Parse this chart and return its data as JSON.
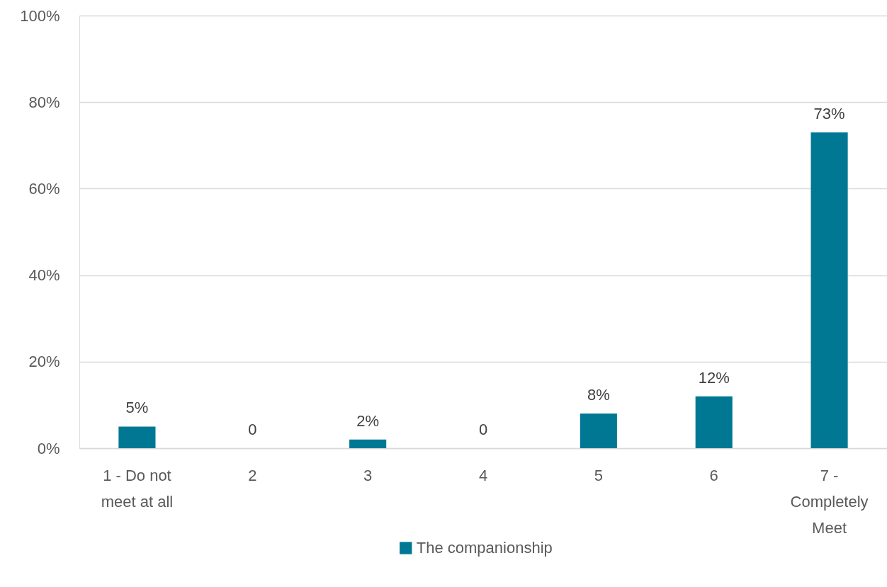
{
  "chart_data": {
    "type": "bar",
    "categories": [
      "1 - Do not meet at all",
      "2",
      "3",
      "4",
      "5",
      "6",
      "7 - Completely Meet"
    ],
    "series": [
      {
        "name": "The companionship",
        "color": "#007894",
        "values": [
          5,
          0,
          2,
          0,
          8,
          12,
          73
        ],
        "value_labels": [
          "5%",
          "0",
          "2%",
          "0",
          "8%",
          "12%",
          "73%"
        ]
      }
    ],
    "ylim": [
      0,
      100
    ],
    "yticks": [
      {
        "value": 0,
        "label": "0%"
      },
      {
        "value": 20,
        "label": "20%"
      },
      {
        "value": 40,
        "label": "40%"
      },
      {
        "value": 60,
        "label": "60%"
      },
      {
        "value": 80,
        "label": "80%"
      },
      {
        "value": 100,
        "label": "100%"
      }
    ],
    "grid": "y",
    "legend": "bottom"
  }
}
